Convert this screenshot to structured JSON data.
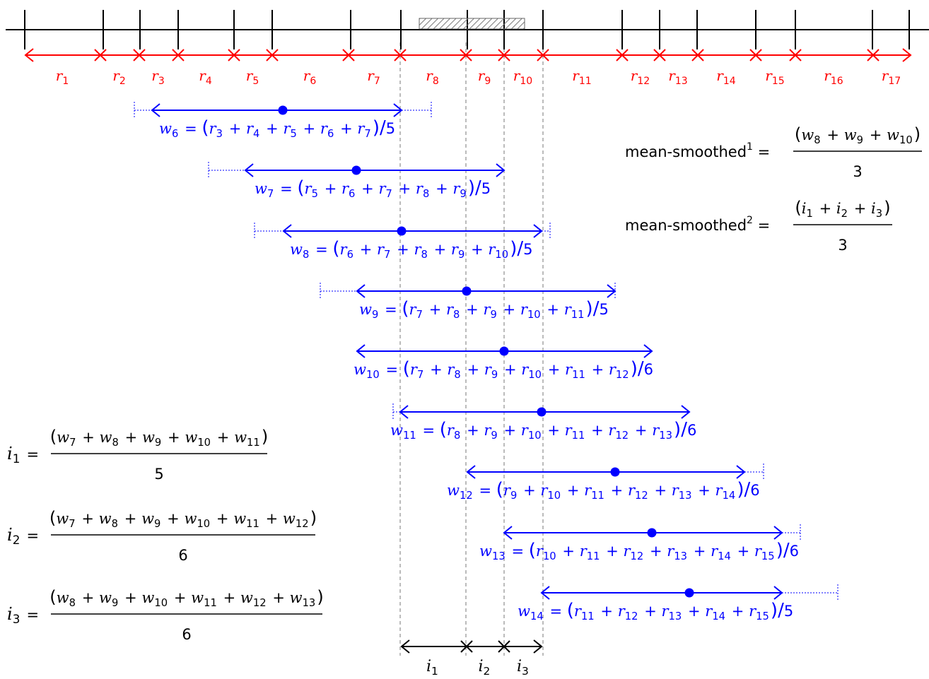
{
  "colors": {
    "regions": "#ff0000",
    "windows": "#0000ff",
    "axis": "#000000",
    "guide": "#777777"
  },
  "regions": [
    {
      "sym": "r",
      "sub": "1"
    },
    {
      "sym": "r",
      "sub": "2"
    },
    {
      "sym": "r",
      "sub": "3"
    },
    {
      "sym": "r",
      "sub": "4"
    },
    {
      "sym": "r",
      "sub": "5"
    },
    {
      "sym": "r",
      "sub": "6"
    },
    {
      "sym": "r",
      "sub": "7"
    },
    {
      "sym": "r",
      "sub": "8"
    },
    {
      "sym": "r",
      "sub": "9"
    },
    {
      "sym": "r",
      "sub": "10"
    },
    {
      "sym": "r",
      "sub": "11"
    },
    {
      "sym": "r",
      "sub": "12"
    },
    {
      "sym": "r",
      "sub": "13"
    },
    {
      "sym": "r",
      "sub": "14"
    },
    {
      "sym": "r",
      "sub": "15"
    },
    {
      "sym": "r",
      "sub": "16"
    },
    {
      "sym": "r",
      "sub": "17"
    }
  ],
  "windows": [
    {
      "sym": "w",
      "sub": "6",
      "terms": [
        "3",
        "4",
        "5",
        "6",
        "7"
      ],
      "divisor": "5"
    },
    {
      "sym": "w",
      "sub": "7",
      "terms": [
        "5",
        "6",
        "7",
        "8",
        "9"
      ],
      "divisor": "5"
    },
    {
      "sym": "w",
      "sub": "8",
      "terms": [
        "6",
        "7",
        "8",
        "9",
        "10"
      ],
      "divisor": "5"
    },
    {
      "sym": "w",
      "sub": "9",
      "terms": [
        "7",
        "8",
        "9",
        "10",
        "11"
      ],
      "divisor": "5"
    },
    {
      "sym": "w",
      "sub": "10",
      "terms": [
        "7",
        "8",
        "9",
        "10",
        "11",
        "12"
      ],
      "divisor": "6"
    },
    {
      "sym": "w",
      "sub": "11",
      "terms": [
        "8",
        "9",
        "10",
        "11",
        "12",
        "13"
      ],
      "divisor": "6"
    },
    {
      "sym": "w",
      "sub": "12",
      "terms": [
        "9",
        "10",
        "11",
        "12",
        "13",
        "14"
      ],
      "divisor": "6"
    },
    {
      "sym": "w",
      "sub": "13",
      "terms": [
        "10",
        "11",
        "12",
        "13",
        "14",
        "15"
      ],
      "divisor": "6"
    },
    {
      "sym": "w",
      "sub": "14",
      "terms": [
        "11",
        "12",
        "13",
        "14",
        "15"
      ],
      "divisor": "5"
    }
  ],
  "interval_formulas": [
    {
      "sym": "i",
      "sub": "1",
      "terms": [
        "7",
        "8",
        "9",
        "10",
        "11"
      ],
      "denominator": "5"
    },
    {
      "sym": "i",
      "sub": "2",
      "terms": [
        "7",
        "8",
        "9",
        "10",
        "11",
        "12"
      ],
      "denominator": "6"
    },
    {
      "sym": "i",
      "sub": "3",
      "terms": [
        "8",
        "9",
        "10",
        "11",
        "12",
        "13"
      ],
      "denominator": "6"
    }
  ],
  "mean_smoothed": [
    {
      "label": "mean-smoothed",
      "sup": "1",
      "sym": "w",
      "terms": [
        "8",
        "9",
        "10"
      ],
      "denominator": "3"
    },
    {
      "label": "mean-smoothed",
      "sup": "2",
      "sym": "i",
      "terms": [
        "1",
        "2",
        "3"
      ],
      "denominator": "3"
    }
  ],
  "intervals": [
    {
      "sym": "i",
      "sub": "1"
    },
    {
      "sym": "i",
      "sub": "2"
    },
    {
      "sym": "i",
      "sub": "3"
    }
  ],
  "symbols": {
    "equals": "=",
    "plus": "+",
    "open": "(",
    "close": ")",
    "slash": "/"
  }
}
